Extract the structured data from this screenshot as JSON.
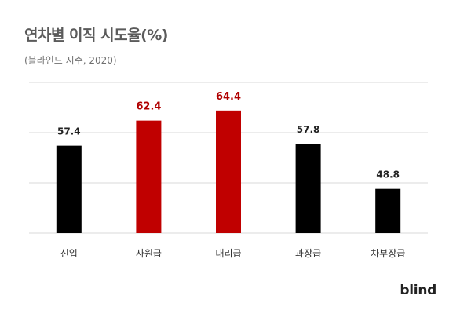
{
  "header": {
    "title": "연차별 이직 시도율(%)",
    "subtitle": "(블라인드 지수, 2020)"
  },
  "brand": {
    "logo_text": "blind"
  },
  "colors": {
    "highlight": "#c00000",
    "normal": "#000000",
    "grid": "#d9d9d9",
    "highlight_label": "#b00000",
    "normal_label": "#222222"
  },
  "chart_data": {
    "type": "bar",
    "title": "연차별 이직 시도율(%)",
    "subtitle": "(블라인드 지수, 2020)",
    "categories": [
      "신입",
      "사원급",
      "대리급",
      "과장급",
      "차부장급"
    ],
    "values": [
      57.4,
      62.4,
      64.4,
      57.8,
      48.8
    ],
    "data_labels": [
      "57.4",
      "62.4",
      "64.4",
      "57.8",
      "48.8"
    ],
    "highlighted": [
      false,
      true,
      true,
      false,
      false
    ],
    "ylim": [
      40,
      70
    ],
    "grid": true,
    "legend": "none"
  }
}
